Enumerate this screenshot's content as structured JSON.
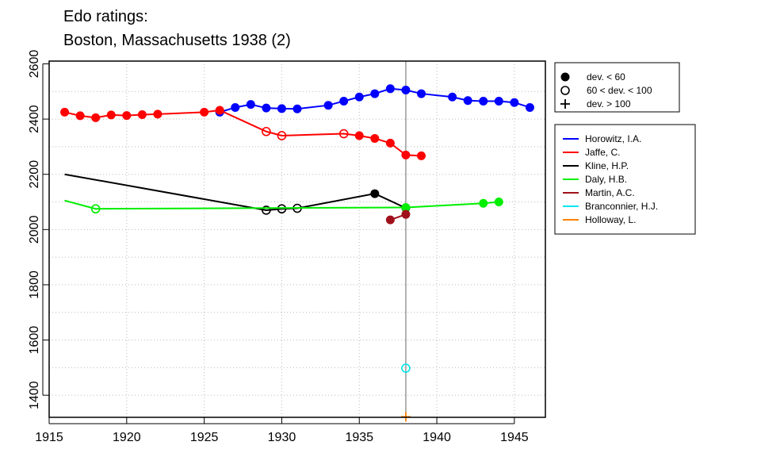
{
  "chart_data": {
    "type": "line",
    "title": "Edo ratings:",
    "subtitle": "Boston, Massachusetts 1938 (2)",
    "xlabel": "",
    "ylabel": "",
    "xlim": [
      1915,
      1947
    ],
    "ylim": [
      1320,
      2610
    ],
    "x_ticks": [
      1915,
      1920,
      1925,
      1930,
      1935,
      1940,
      1945
    ],
    "y_ticks": [
      1400,
      1600,
      1800,
      2000,
      2200,
      2400,
      2600
    ],
    "x_tick_labels": [
      "1915",
      "1920",
      "1925",
      "1930",
      "1935",
      "1940",
      "1945"
    ],
    "y_tick_labels": [
      "1400",
      "1600",
      "1800",
      "2000",
      "2200",
      "2400",
      "2600"
    ],
    "grid": true,
    "reference_year": 1938,
    "marker_legend": [
      {
        "marker": "filled",
        "label": "dev. < 60"
      },
      {
        "marker": "open",
        "label": "60 < dev. < 100"
      },
      {
        "marker": "plus",
        "label": "dev. > 100"
      }
    ],
    "legend_position": "right",
    "series": [
      {
        "name": "Horowitz, I.A.",
        "color": "#0000ff",
        "points": [
          {
            "x": 1926,
            "y": 2425,
            "m": "filled"
          },
          {
            "x": 1927,
            "y": 2442,
            "m": "filled"
          },
          {
            "x": 1928,
            "y": 2453,
            "m": "filled"
          },
          {
            "x": 1929,
            "y": 2440,
            "m": "filled"
          },
          {
            "x": 1930,
            "y": 2438,
            "m": "filled"
          },
          {
            "x": 1931,
            "y": 2437,
            "m": "filled"
          },
          {
            "x": 1933,
            "y": 2450,
            "m": "filled"
          },
          {
            "x": 1934,
            "y": 2465,
            "m": "filled"
          },
          {
            "x": 1935,
            "y": 2480,
            "m": "filled"
          },
          {
            "x": 1936,
            "y": 2492,
            "m": "filled"
          },
          {
            "x": 1937,
            "y": 2510,
            "m": "filled"
          },
          {
            "x": 1938,
            "y": 2505,
            "m": "filled"
          },
          {
            "x": 1939,
            "y": 2492,
            "m": "filled"
          },
          {
            "x": 1941,
            "y": 2480,
            "m": "filled"
          },
          {
            "x": 1942,
            "y": 2467,
            "m": "filled"
          },
          {
            "x": 1943,
            "y": 2465,
            "m": "filled"
          },
          {
            "x": 1944,
            "y": 2465,
            "m": "filled"
          },
          {
            "x": 1945,
            "y": 2460,
            "m": "filled"
          },
          {
            "x": 1946,
            "y": 2442,
            "m": "filled"
          }
        ]
      },
      {
        "name": "Jaffe, C.",
        "color": "#ff0000",
        "points": [
          {
            "x": 1916,
            "y": 2425,
            "m": "filled"
          },
          {
            "x": 1917,
            "y": 2412,
            "m": "filled"
          },
          {
            "x": 1918,
            "y": 2405,
            "m": "filled"
          },
          {
            "x": 1919,
            "y": 2415,
            "m": "filled"
          },
          {
            "x": 1920,
            "y": 2413,
            "m": "filled"
          },
          {
            "x": 1921,
            "y": 2416,
            "m": "filled"
          },
          {
            "x": 1922,
            "y": 2418,
            "m": "filled"
          },
          {
            "x": 1925,
            "y": 2425,
            "m": "filled"
          },
          {
            "x": 1926,
            "y": 2432,
            "m": "filled"
          },
          {
            "x": 1929,
            "y": 2355,
            "m": "open"
          },
          {
            "x": 1930,
            "y": 2340,
            "m": "open"
          },
          {
            "x": 1934,
            "y": 2347,
            "m": "open"
          },
          {
            "x": 1935,
            "y": 2340,
            "m": "filled"
          },
          {
            "x": 1936,
            "y": 2330,
            "m": "filled"
          },
          {
            "x": 1937,
            "y": 2313,
            "m": "filled"
          },
          {
            "x": 1938,
            "y": 2270,
            "m": "filled"
          },
          {
            "x": 1939,
            "y": 2267,
            "m": "filled"
          }
        ]
      },
      {
        "name": "Kline, H.P.",
        "color": "#000000",
        "points": [
          {
            "x": 1916,
            "y": 2200,
            "m": "none"
          },
          {
            "x": 1929,
            "y": 2070,
            "m": "open"
          },
          {
            "x": 1930,
            "y": 2075,
            "m": "open"
          },
          {
            "x": 1931,
            "y": 2077,
            "m": "open"
          },
          {
            "x": 1936,
            "y": 2130,
            "m": "filled"
          },
          {
            "x": 1938,
            "y": 2078,
            "m": "filled"
          }
        ]
      },
      {
        "name": "Daly, H.B.",
        "color": "#00ee00",
        "points": [
          {
            "x": 1916,
            "y": 2105,
            "m": "none"
          },
          {
            "x": 1918,
            "y": 2075,
            "m": "open"
          },
          {
            "x": 1938,
            "y": 2080,
            "m": "filled"
          },
          {
            "x": 1943,
            "y": 2095,
            "m": "filled"
          },
          {
            "x": 1944,
            "y": 2100,
            "m": "filled"
          }
        ]
      },
      {
        "name": "Martin, A.C.",
        "color": "#a0101a",
        "points": [
          {
            "x": 1937,
            "y": 2035,
            "m": "filled"
          },
          {
            "x": 1938,
            "y": 2055,
            "m": "filled"
          }
        ]
      },
      {
        "name": "Branconnier, H.J.",
        "color": "#00e5ee",
        "points": [
          {
            "x": 1938,
            "y": 1498,
            "m": "open"
          }
        ]
      },
      {
        "name": "Holloway, L.",
        "color": "#ff7f00",
        "points": [
          {
            "x": 1938,
            "y": 1322,
            "m": "plus"
          }
        ]
      }
    ]
  }
}
